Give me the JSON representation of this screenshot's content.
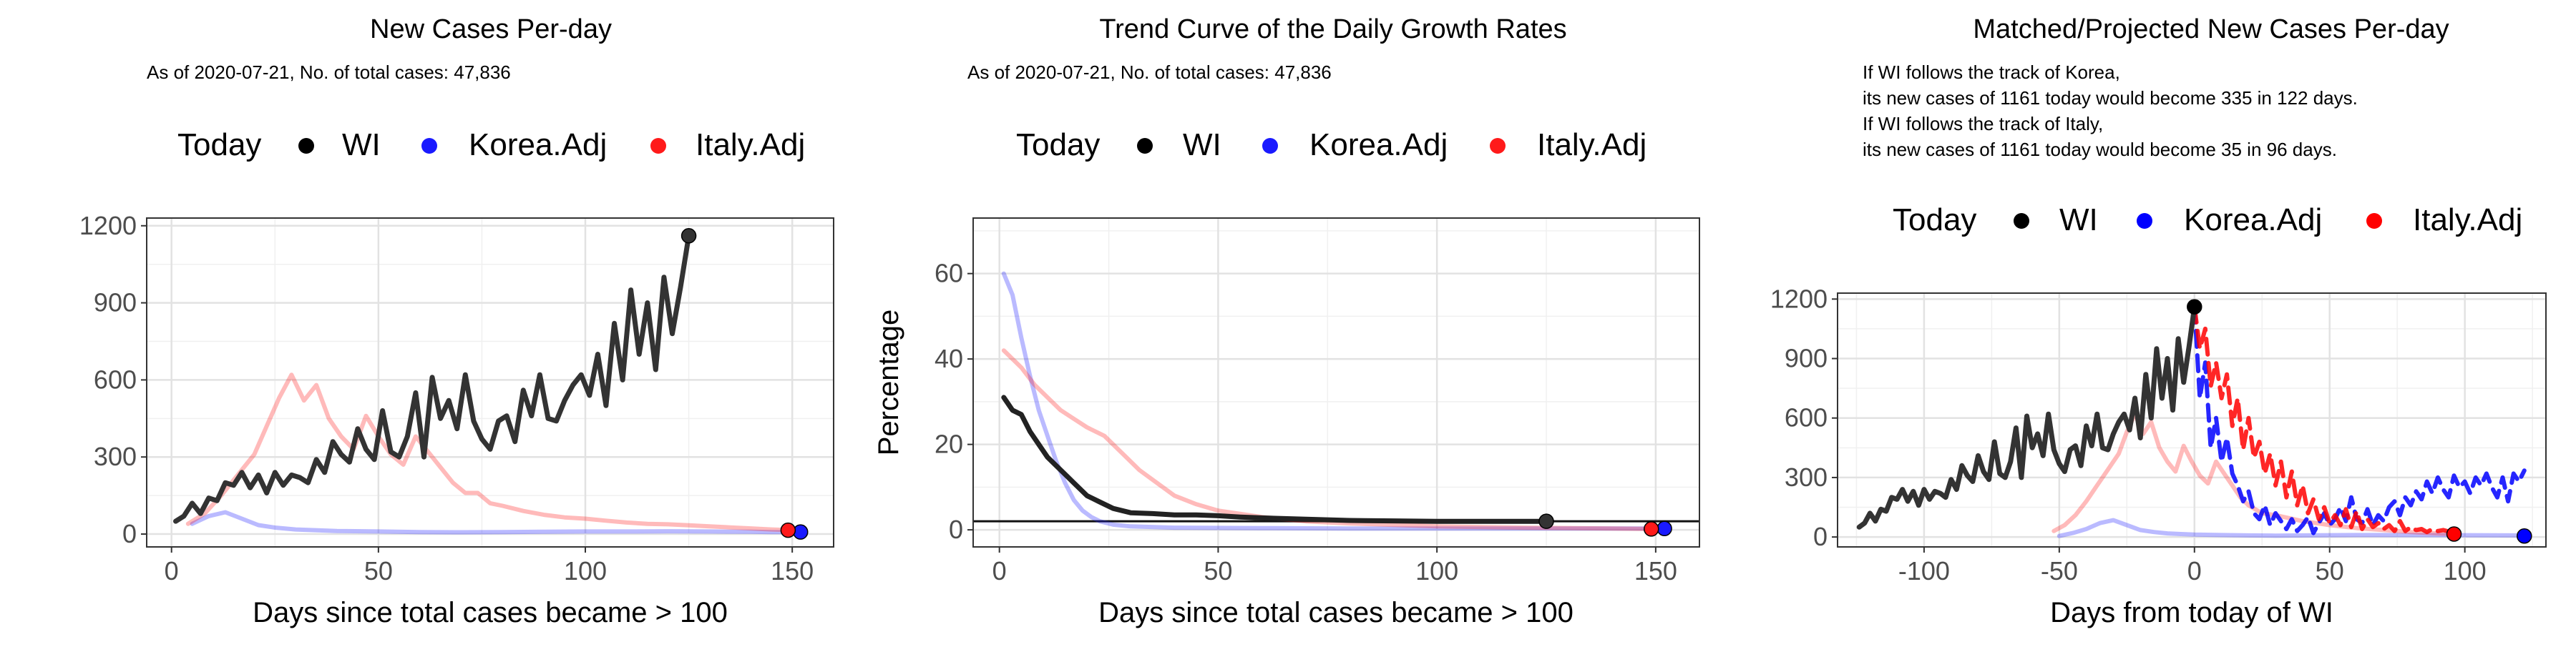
{
  "chart_data": [
    {
      "type": "line",
      "title": "New Cases Per-day",
      "subtitle": [
        "As of 2020-07-21, No. of total cases: 47,836"
      ],
      "xlabel": "Days since total cases became > 100",
      "ylabel": "",
      "xlim": [
        -6,
        160
      ],
      "ylim": [
        -50,
        1230
      ],
      "xticks": [
        0,
        50,
        100,
        150
      ],
      "yticks": [
        0,
        300,
        600,
        900,
        1200
      ],
      "grid": true,
      "legend": {
        "position": "top",
        "title": "Today",
        "entries": [
          {
            "label": "WI",
            "color": "#000000"
          },
          {
            "label": "Korea.Adj",
            "color": "#1a1aff"
          },
          {
            "label": "Italy.Adj",
            "color": "#ff1a1a"
          }
        ]
      },
      "series": [
        {
          "name": "WI",
          "color": "#333333",
          "dash": false,
          "opacity": 1,
          "x": [
            1,
            3,
            5,
            7,
            9,
            11,
            13,
            15,
            17,
            19,
            21,
            23,
            25,
            27,
            29,
            31,
            33,
            35,
            37,
            39,
            41,
            43,
            45,
            47,
            49,
            51,
            53,
            55,
            57,
            59,
            61,
            63,
            65,
            67,
            69,
            71,
            73,
            75,
            77,
            79,
            81,
            83,
            85,
            87,
            89,
            91,
            93,
            95,
            97,
            99,
            101,
            103,
            105,
            107,
            109,
            111,
            113,
            115,
            117,
            119,
            121,
            123,
            125
          ],
          "y": [
            50,
            70,
            120,
            80,
            140,
            130,
            200,
            190,
            240,
            180,
            230,
            160,
            240,
            190,
            230,
            220,
            200,
            290,
            240,
            360,
            310,
            280,
            410,
            330,
            290,
            480,
            320,
            300,
            380,
            550,
            300,
            610,
            450,
            520,
            410,
            620,
            440,
            370,
            330,
            440,
            460,
            360,
            560,
            460,
            620,
            450,
            440,
            520,
            580,
            620,
            540,
            700,
            500,
            820,
            600,
            950,
            700,
            900,
            640,
            1000,
            780,
            960,
            1161
          ]
        },
        {
          "name": "Korea.Adj",
          "color": "#1a1aff",
          "dash": false,
          "opacity": 0.3,
          "x": [
            5,
            9,
            13,
            17,
            21,
            25,
            30,
            40,
            50,
            60,
            70,
            80,
            90,
            100,
            110,
            120,
            130,
            140,
            145,
            150,
            152
          ],
          "y": [
            40,
            70,
            85,
            60,
            35,
            25,
            18,
            12,
            10,
            8,
            7,
            8,
            9,
            10,
            10,
            11,
            10,
            9,
            8,
            8,
            8
          ]
        },
        {
          "name": "Italy.Adj",
          "color": "#ff1a1a",
          "dash": false,
          "opacity": 0.3,
          "x": [
            4,
            8,
            12,
            16,
            20,
            23,
            26,
            29,
            32,
            35,
            38,
            41,
            44,
            47,
            50,
            53,
            56,
            59,
            62,
            65,
            68,
            71,
            74,
            77,
            80,
            85,
            90,
            95,
            100,
            105,
            110,
            115,
            120,
            125,
            130,
            135,
            140,
            145,
            150
          ],
          "y": [
            40,
            80,
            150,
            230,
            310,
            420,
            530,
            620,
            520,
            580,
            450,
            380,
            330,
            460,
            380,
            310,
            270,
            380,
            320,
            260,
            200,
            160,
            160,
            120,
            110,
            90,
            75,
            65,
            60,
            52,
            45,
            40,
            38,
            34,
            30,
            26,
            22,
            18,
            15
          ]
        }
      ],
      "today_points": [
        {
          "name": "WI",
          "x": 125,
          "y": 1161,
          "color": "#333333"
        },
        {
          "name": "Korea.Adj",
          "x": 152,
          "y": 8,
          "color": "#1a1aff"
        },
        {
          "name": "Italy.Adj",
          "x": 149,
          "y": 15,
          "color": "#ff1a1a"
        }
      ],
      "hline": null
    },
    {
      "type": "line",
      "title": "Trend Curve of the Daily Growth Rates",
      "subtitle": [
        "As of 2020-07-21, No. of total cases: 47,836"
      ],
      "xlabel": "Days since total cases became > 100",
      "ylabel": "Percentage",
      "xlim": [
        -6,
        160
      ],
      "ylim": [
        -4,
        73
      ],
      "xticks": [
        0,
        50,
        100,
        150
      ],
      "yticks": [
        0,
        20,
        40,
        60
      ],
      "grid": true,
      "legend": {
        "position": "top",
        "title": "Today",
        "entries": [
          {
            "label": "WI",
            "color": "#000000"
          },
          {
            "label": "Korea.Adj",
            "color": "#1a1aff"
          },
          {
            "label": "Italy.Adj",
            "color": "#ff1a1a"
          }
        ]
      },
      "series": [
        {
          "name": "WI",
          "color": "#222222",
          "dash": false,
          "opacity": 1,
          "x": [
            1,
            3,
            5,
            7,
            9,
            11,
            13,
            15,
            17,
            20,
            23,
            26,
            30,
            35,
            40,
            45,
            50,
            55,
            60,
            70,
            80,
            90,
            100,
            110,
            120,
            125
          ],
          "y": [
            31,
            28,
            27,
            23,
            20,
            17,
            15,
            13,
            11,
            8,
            6.5,
            5,
            4,
            3.8,
            3.5,
            3.5,
            3.3,
            3,
            2.8,
            2.5,
            2.2,
            2.1,
            2,
            2,
            2,
            2
          ]
        },
        {
          "name": "Korea.Adj",
          "color": "#1a1aff",
          "dash": false,
          "opacity": 0.3,
          "x": [
            1,
            3,
            5,
            7,
            9,
            11,
            13,
            15,
            17,
            19,
            21,
            23,
            26,
            30,
            40,
            60,
            80,
            100,
            120,
            140,
            152
          ],
          "y": [
            60,
            55,
            45,
            36,
            28,
            22,
            16,
            11,
            7,
            4.5,
            3,
            2,
            1.2,
            0.8,
            0.5,
            0.4,
            0.3,
            0.3,
            0.3,
            0.3,
            0.3
          ]
        },
        {
          "name": "Italy.Adj",
          "color": "#ff1a1a",
          "dash": false,
          "opacity": 0.3,
          "x": [
            1,
            3,
            5,
            8,
            11,
            14,
            17,
            20,
            24,
            28,
            32,
            36,
            40,
            45,
            50,
            60,
            70,
            80,
            100,
            120,
            140,
            149
          ],
          "y": [
            42,
            40,
            38,
            34,
            31,
            28,
            26,
            24,
            22,
            18,
            14,
            11,
            8,
            6,
            4.5,
            3,
            2,
            1.5,
            0.8,
            0.5,
            0.3,
            0.2
          ]
        }
      ],
      "today_points": [
        {
          "name": "WI",
          "x": 125,
          "y": 2,
          "color": "#333333"
        },
        {
          "name": "Korea.Adj",
          "x": 152,
          "y": 0.3,
          "color": "#1a1aff"
        },
        {
          "name": "Italy.Adj",
          "x": 149,
          "y": 0.2,
          "color": "#ff1a1a"
        }
      ],
      "hline": 2
    },
    {
      "type": "line",
      "title": "Matched/Projected New Cases Per-day",
      "subtitle": [
        "If WI follows the track of Korea,",
        "its new cases of 1161 today would become 335 in 122 days.",
        "If WI follows the track of Italy,",
        "its new cases of 1161 today would become 35 in 96 days."
      ],
      "xlabel": "Days from today of WI",
      "ylabel": "",
      "xlim": [
        -132,
        130
      ],
      "ylim": [
        -50,
        1230
      ],
      "xticks": [
        -100,
        -50,
        0,
        50,
        100
      ],
      "yticks": [
        0,
        300,
        600,
        900,
        1200
      ],
      "grid": true,
      "legend": {
        "position": "top",
        "title": "Today",
        "entries": [
          {
            "label": "WI",
            "color": "#000000"
          },
          {
            "label": "Korea.Adj",
            "color": "#0000ff"
          },
          {
            "label": "Italy.Adj",
            "color": "#ff0000"
          }
        ]
      },
      "series": [
        {
          "name": "WI",
          "color": "#333333",
          "dash": false,
          "opacity": 1,
          "x": [
            -124,
            -122,
            -120,
            -118,
            -116,
            -114,
            -112,
            -110,
            -108,
            -106,
            -104,
            -102,
            -100,
            -98,
            -96,
            -94,
            -92,
            -90,
            -88,
            -86,
            -84,
            -82,
            -80,
            -78,
            -76,
            -74,
            -72,
            -70,
            -68,
            -66,
            -64,
            -62,
            -60,
            -58,
            -56,
            -54,
            -52,
            -50,
            -48,
            -46,
            -44,
            -42,
            -40,
            -38,
            -36,
            -34,
            -32,
            -30,
            -28,
            -26,
            -24,
            -22,
            -20,
            -18,
            -16,
            -14,
            -12,
            -10,
            -8,
            -6,
            -4,
            -2,
            0
          ],
          "y": [
            50,
            70,
            120,
            80,
            140,
            130,
            200,
            190,
            240,
            180,
            230,
            160,
            240,
            190,
            230,
            220,
            200,
            290,
            240,
            360,
            310,
            280,
            410,
            330,
            290,
            480,
            320,
            300,
            380,
            550,
            300,
            610,
            450,
            520,
            410,
            620,
            440,
            370,
            330,
            440,
            460,
            360,
            560,
            460,
            620,
            450,
            440,
            520,
            580,
            620,
            540,
            700,
            500,
            820,
            600,
            950,
            700,
            900,
            640,
            1000,
            780,
            960,
            1161
          ]
        },
        {
          "name": "Korea.Adj",
          "color": "#1a1aff",
          "dash": false,
          "opacity": 0.3,
          "x": [
            -50,
            -45,
            -40,
            -35,
            -30,
            -25,
            -20,
            -15,
            -10,
            -5,
            0,
            10,
            20,
            30,
            40,
            50,
            60,
            80,
            100,
            120
          ],
          "y": [
            5,
            20,
            40,
            70,
            85,
            60,
            35,
            25,
            18,
            15,
            12,
            10,
            8,
            7,
            8,
            9,
            10,
            10,
            9,
            8
          ]
        },
        {
          "name": "Italy.Adj",
          "color": "#ff1a1a",
          "dash": false,
          "opacity": 0.3,
          "x": [
            -52,
            -48,
            -44,
            -40,
            -36,
            -32,
            -28,
            -25,
            -22,
            -19,
            -16,
            -13,
            -10,
            -7,
            -4,
            -1,
            2,
            5,
            8,
            11,
            14,
            17,
            20,
            25,
            30,
            40,
            50,
            60,
            70,
            80,
            90,
            96
          ],
          "y": [
            30,
            60,
            110,
            180,
            260,
            340,
            420,
            530,
            620,
            520,
            580,
            450,
            380,
            330,
            460,
            380,
            310,
            270,
            380,
            320,
            260,
            200,
            160,
            120,
            110,
            80,
            60,
            45,
            35,
            25,
            18,
            15
          ]
        },
        {
          "name": "Korea.Adj",
          "color": "#0000ff",
          "dash": true,
          "opacity": 0.85,
          "x": [
            0,
            2,
            4,
            6,
            8,
            10,
            12,
            14,
            16,
            18,
            20,
            22,
            24,
            26,
            28,
            30,
            32,
            34,
            36,
            38,
            40,
            42,
            44,
            46,
            48,
            50,
            52,
            54,
            56,
            58,
            60,
            62,
            64,
            66,
            68,
            70,
            72,
            74,
            76,
            78,
            80,
            82,
            84,
            86,
            88,
            90,
            92,
            94,
            96,
            98,
            100,
            102,
            104,
            106,
            108,
            110,
            112,
            114,
            116,
            118,
            120,
            122
          ],
          "y": [
            1161,
            700,
            880,
            450,
            600,
            380,
            500,
            320,
            260,
            180,
            230,
            120,
            90,
            160,
            60,
            120,
            80,
            40,
            90,
            30,
            60,
            100,
            20,
            70,
            120,
            60,
            90,
            150,
            80,
            200,
            90,
            70,
            140,
            60,
            110,
            80,
            150,
            180,
            110,
            200,
            160,
            230,
            190,
            280,
            220,
            300,
            240,
            200,
            310,
            250,
            280,
            220,
            300,
            260,
            320,
            250,
            200,
            300,
            180,
            320,
            280,
            335
          ]
        },
        {
          "name": "Italy.Adj",
          "color": "#ff0000",
          "dash": true,
          "opacity": 0.85,
          "x": [
            0,
            2,
            4,
            6,
            8,
            10,
            12,
            14,
            16,
            18,
            20,
            22,
            24,
            26,
            28,
            30,
            32,
            34,
            36,
            38,
            40,
            42,
            44,
            46,
            48,
            50,
            52,
            54,
            56,
            58,
            60,
            62,
            64,
            66,
            68,
            70,
            72,
            74,
            76,
            78,
            80,
            82,
            84,
            86,
            88,
            90,
            92,
            94,
            96
          ],
          "y": [
            1161,
            950,
            1050,
            760,
            880,
            700,
            820,
            560,
            700,
            440,
            600,
            400,
            480,
            320,
            420,
            260,
            380,
            200,
            330,
            160,
            260,
            120,
            190,
            90,
            150,
            70,
            110,
            60,
            140,
            50,
            130,
            40,
            90,
            50,
            70,
            40,
            60,
            30,
            80,
            30,
            50,
            35,
            40,
            25,
            40,
            30,
            35,
            28,
            35
          ]
        }
      ],
      "today_points": [
        {
          "name": "WI",
          "x": 0,
          "y": 1161,
          "color": "#000000"
        },
        {
          "name": "Korea.Adj",
          "x": 122,
          "y": 5,
          "color": "#0000ff"
        },
        {
          "name": "Italy.Adj",
          "x": 96,
          "y": 15,
          "color": "#ff0000"
        }
      ],
      "hline": null
    }
  ]
}
